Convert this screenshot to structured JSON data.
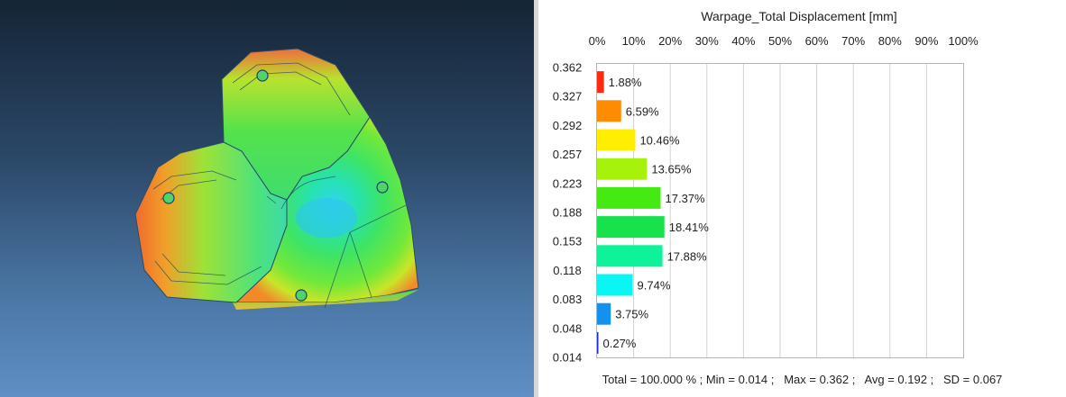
{
  "colors": {
    "viewport_top": "#152536",
    "viewport_bottom": "#5f8fc4"
  },
  "chart_data": {
    "type": "bar",
    "orientation": "horizontal",
    "title": "Warpage_Total Displacement [mm]",
    "x_ticks": [
      "0%",
      "10%",
      "20%",
      "30%",
      "40%",
      "50%",
      "60%",
      "70%",
      "80%",
      "90%",
      "100%"
    ],
    "xlim": [
      0,
      100
    ],
    "y_ticks": [
      "0.362",
      "0.327",
      "0.292",
      "0.257",
      "0.223",
      "0.188",
      "0.153",
      "0.118",
      "0.083",
      "0.048",
      "0.014"
    ],
    "grid": true,
    "bars": [
      {
        "value": 1.88,
        "label": "1.88%",
        "color": "#ff2a10"
      },
      {
        "value": 6.59,
        "label": "6.59%",
        "color": "#ff8c00"
      },
      {
        "value": 10.46,
        "label": "10.46%",
        "color": "#ffee00"
      },
      {
        "value": 13.65,
        "label": "13.65%",
        "color": "#a6f20a"
      },
      {
        "value": 17.37,
        "label": "17.37%",
        "color": "#44ea12"
      },
      {
        "value": 18.41,
        "label": "18.41%",
        "color": "#17e24c"
      },
      {
        "value": 17.88,
        "label": "17.88%",
        "color": "#0ef29a"
      },
      {
        "value": 9.74,
        "label": "9.74%",
        "color": "#0af6f2"
      },
      {
        "value": 3.75,
        "label": "3.75%",
        "color": "#1490ee"
      },
      {
        "value": 0.27,
        "label": "0.27%",
        "color": "#1a2ed6"
      }
    ],
    "stats": "Total = 100.000 % ; Min = 0.014 ;   Max = 0.362 ;   Avg = 0.192 ;   SD = 0.067"
  }
}
